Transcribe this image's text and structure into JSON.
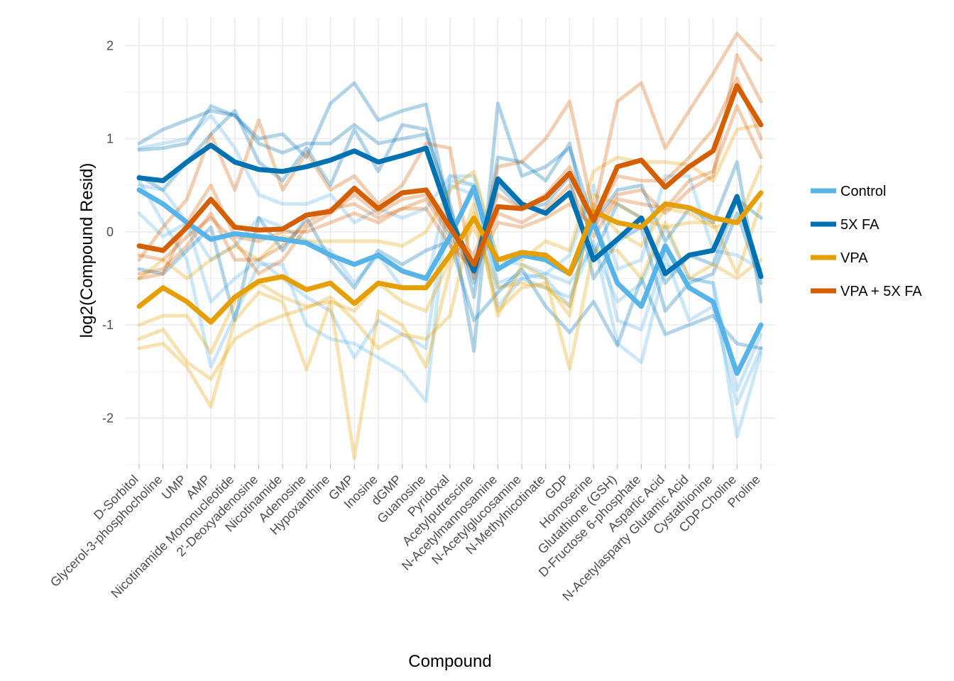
{
  "chart_data": {
    "type": "line",
    "xlabel": "Compound",
    "ylabel": "log2(Compound Resid)",
    "ylim": [
      -2.5,
      2.3
    ],
    "yticks": [
      2,
      1,
      0,
      -1,
      -2
    ],
    "grid": true,
    "legend_position": "right",
    "categories": [
      "D-Sorbitol",
      "Glycerol-3-phosphocholine",
      "UMP",
      "AMP",
      "Nicotinamide Mononucleotide",
      "2'-Deoxyadenosine",
      "Nicotinamide",
      "Adenosine",
      "Hypoxanthine",
      "GMP",
      "Inosine",
      "dGMP",
      "Guanosine",
      "Pyridoxal",
      "Acetylputrescine",
      "N-Acetylmannosamine",
      "N-Acetylglucosamine",
      "N-Methylnicotinate",
      "GDP",
      "Homoserine",
      "Glutathione (GSH)",
      "D-Fructose 6-phosphate",
      "Aspartic Acid",
      "N-Acetylasparty Glutamic Acid",
      "Cystathionine",
      "CDP-Choline",
      "Proline"
    ],
    "legend": [
      {
        "name": "Control",
        "color": "#56B4E9"
      },
      {
        "name": "5X FA",
        "color": "#0072B2"
      },
      {
        "name": "VPA",
        "color": "#E69F00"
      },
      {
        "name": "VPA + 5X FA",
        "color": "#D55E00"
      }
    ],
    "series": [
      {
        "name": "Control",
        "color": "#56B4E9",
        "values": [
          0.45,
          0.3,
          0.1,
          -0.08,
          -0.02,
          -0.05,
          -0.08,
          -0.12,
          -0.25,
          -0.35,
          -0.25,
          -0.42,
          -0.5,
          -0.05,
          0.48,
          -0.4,
          -0.25,
          -0.3,
          -0.45,
          0.1,
          -0.55,
          -0.8,
          -0.15,
          -0.6,
          -0.75,
          -1.52,
          -1.0
        ]
      },
      {
        "name": "5X FA",
        "color": "#0072B2",
        "values": [
          0.58,
          0.55,
          0.75,
          0.93,
          0.75,
          0.67,
          0.65,
          0.7,
          0.77,
          0.87,
          0.75,
          0.82,
          0.9,
          0.15,
          -0.42,
          0.57,
          0.3,
          0.2,
          0.42,
          -0.3,
          -0.08,
          0.15,
          -0.45,
          -0.25,
          -0.2,
          0.38,
          -0.48
        ]
      },
      {
        "name": "VPA",
        "color": "#E69F00",
        "values": [
          -0.8,
          -0.6,
          -0.75,
          -0.97,
          -0.7,
          -0.53,
          -0.48,
          -0.62,
          -0.55,
          -0.77,
          -0.55,
          -0.6,
          -0.6,
          -0.25,
          0.15,
          -0.3,
          -0.22,
          -0.25,
          -0.45,
          0.22,
          0.1,
          0.05,
          0.3,
          0.26,
          0.15,
          0.1,
          0.42
        ]
      },
      {
        "name": "VPA + 5X FA",
        "color": "#D55E00",
        "values": [
          -0.15,
          -0.2,
          0.05,
          0.35,
          0.05,
          0.02,
          0.03,
          0.18,
          0.22,
          0.47,
          0.25,
          0.42,
          0.45,
          0.05,
          -0.35,
          0.27,
          0.25,
          0.37,
          0.63,
          0.12,
          0.7,
          0.77,
          0.48,
          0.7,
          0.87,
          1.57,
          1.15
        ]
      }
    ],
    "replicates": [
      {
        "group": "Control",
        "values": [
          0.9,
          0.95,
          1.0,
          1.25,
          0.9,
          0.4,
          0.3,
          0.3,
          0.4,
          0.1,
          0.25,
          0.15,
          0.25,
          0.6,
          0.6,
          -0.3,
          -0.35,
          -0.45,
          -0.25,
          0.5,
          -0.4,
          -0.3,
          0.6,
          0.6,
          -0.2,
          -0.25,
          -0.4
        ]
      },
      {
        "group": "Control",
        "values": [
          0.2,
          -0.05,
          0.1,
          -0.3,
          -0.15,
          0.15,
          0.05,
          -0.1,
          -0.2,
          -0.55,
          -0.25,
          -0.6,
          -0.6,
          0.6,
          0.5,
          -0.6,
          -0.5,
          -0.45,
          -0.55,
          -0.15,
          -0.75,
          -0.55,
          0.05,
          -0.5,
          -0.55,
          -1.7,
          -1.1
        ]
      },
      {
        "group": "Control",
        "values": [
          0.5,
          0.45,
          0.1,
          -0.75,
          -0.5,
          -0.3,
          -0.5,
          -0.7,
          -0.85,
          -1.35,
          -0.95,
          -1.1,
          -1.25,
          0.55,
          0.5,
          -0.55,
          -0.45,
          -0.5,
          -0.8,
          0.25,
          -0.95,
          -1.05,
          -0.25,
          -0.95,
          -0.8,
          -1.85,
          -1.25
        ]
      },
      {
        "group": "Control",
        "values": [
          0.55,
          0.1,
          -0.3,
          -1.45,
          -0.9,
          -0.35,
          -0.35,
          -1.0,
          -1.15,
          -1.2,
          -1.35,
          -1.5,
          -1.82,
          0.5,
          0.4,
          -0.8,
          -0.5,
          -0.6,
          -0.7,
          -0.1,
          -1.2,
          -1.4,
          -0.35,
          -0.5,
          -0.55,
          -2.2,
          -1.3
        ]
      },
      {
        "group": "5X FA",
        "values": [
          0.88,
          0.9,
          0.95,
          1.35,
          1.25,
          1.0,
          1.05,
          0.8,
          1.38,
          1.6,
          1.2,
          1.3,
          1.37,
          0.2,
          -1.28,
          1.38,
          0.6,
          0.7,
          0.9,
          0.1,
          0.45,
          0.5,
          -0.1,
          0.25,
          0.1,
          0.75,
          -0.75
        ]
      },
      {
        "group": "5X FA",
        "values": [
          0.95,
          1.1,
          1.2,
          1.3,
          1.25,
          0.95,
          0.85,
          0.95,
          0.95,
          1.15,
          0.95,
          1.0,
          1.05,
          0.3,
          -0.7,
          0.8,
          0.75,
          0.55,
          0.95,
          -0.25,
          0.3,
          0.15,
          -0.55,
          -0.25,
          -0.35,
          0.35,
          0.15
        ]
      },
      {
        "group": "5X FA",
        "values": [
          0.6,
          0.45,
          0.75,
          1.05,
          1.3,
          0.75,
          0.55,
          0.9,
          0.5,
          1.1,
          0.65,
          1.15,
          1.1,
          0.25,
          -0.55,
          0.5,
          0.25,
          0.3,
          0.6,
          -0.5,
          -0.1,
          0.05,
          -0.85,
          -0.55,
          -0.45,
          0.2,
          -0.55
        ]
      },
      {
        "group": "5X FA",
        "values": [
          -0.4,
          -0.45,
          -0.2,
          0.05,
          -0.95,
          0.15,
          -0.2,
          0.15,
          -0.3,
          -0.6,
          -0.2,
          -0.35,
          -0.2,
          -0.1,
          -0.95,
          -0.65,
          -0.4,
          -0.8,
          -1.08,
          -0.75,
          -1.22,
          -0.5,
          -1.1,
          -1.0,
          -0.9,
          -1.2,
          -1.25
        ]
      },
      {
        "group": "VPA",
        "values": [
          -0.5,
          -0.3,
          -0.5,
          -0.3,
          -0.15,
          -0.3,
          -0.05,
          -0.1,
          -0.1,
          -0.1,
          -0.1,
          -0.15,
          0.0,
          0.45,
          0.65,
          -0.3,
          -0.3,
          -0.1,
          -0.2,
          0.65,
          0.8,
          0.75,
          0.75,
          0.72,
          0.55,
          1.1,
          1.15
        ]
      },
      {
        "group": "VPA",
        "values": [
          -1.0,
          -0.9,
          -0.9,
          -1.3,
          -0.75,
          -0.55,
          -0.7,
          -0.8,
          -0.75,
          -0.85,
          -0.55,
          -0.75,
          -0.85,
          -0.3,
          0.05,
          -0.6,
          -0.55,
          -0.6,
          -0.8,
          0.3,
          0.0,
          -0.15,
          0.25,
          0.2,
          0.05,
          0.1,
          0.7
        ]
      },
      {
        "group": "VPA",
        "values": [
          -1.25,
          -1.2,
          -1.45,
          -1.88,
          -0.95,
          -0.65,
          -0.75,
          -1.48,
          -0.75,
          -2.43,
          -0.85,
          -1.0,
          -1.45,
          -0.4,
          0.3,
          -0.9,
          -0.35,
          -0.5,
          -1.47,
          -0.2,
          -0.2,
          -0.5,
          0.1,
          -0.5,
          -0.35,
          -0.5,
          -0.3
        ]
      },
      {
        "group": "VPA",
        "values": [
          -1.15,
          -1.05,
          -1.4,
          -1.58,
          -1.15,
          -1.0,
          -0.9,
          -0.82,
          -0.7,
          -0.95,
          -1.25,
          -1.1,
          -1.15,
          -0.9,
          0.2,
          -0.85,
          -0.6,
          -0.55,
          -0.9,
          0.4,
          0.3,
          0.15,
          0.05,
          0.1,
          0.1,
          -0.45,
          0.3
        ]
      },
      {
        "group": "VPA + 5X FA",
        "values": [
          -0.3,
          0.05,
          0.35,
          1.05,
          0.45,
          1.2,
          0.45,
          0.85,
          0.45,
          0.6,
          0.3,
          0.5,
          0.95,
          0.9,
          -0.5,
          0.7,
          0.75,
          1.0,
          1.4,
          0.2,
          1.4,
          1.6,
          0.9,
          1.3,
          1.7,
          2.13,
          1.85
        ]
      },
      {
        "group": "VPA + 5X FA",
        "values": [
          -0.45,
          -0.4,
          -0.15,
          0.2,
          -0.3,
          -0.3,
          -0.15,
          0.1,
          0.25,
          0.3,
          0.15,
          0.25,
          0.35,
          -0.05,
          -0.45,
          0.1,
          0.05,
          0.15,
          0.3,
          0.05,
          0.4,
          0.45,
          0.2,
          0.45,
          0.6,
          1.9,
          1.4
        ]
      },
      {
        "group": "VPA + 5X FA",
        "values": [
          -0.5,
          -0.45,
          0.1,
          0.5,
          -0.05,
          -0.1,
          0.0,
          0.0,
          0.1,
          0.2,
          0.1,
          0.25,
          0.25,
          -0.15,
          -0.4,
          0.2,
          0.1,
          0.25,
          0.5,
          -0.05,
          0.35,
          0.3,
          0.25,
          0.55,
          0.65,
          1.35,
          0.8
        ]
      },
      {
        "group": "VPA + 5X FA",
        "values": [
          -0.25,
          -0.3,
          -0.05,
          0.15,
          -0.1,
          -0.45,
          -0.3,
          0.05,
          0.2,
          0.4,
          0.2,
          0.35,
          0.4,
          0.0,
          -0.25,
          0.4,
          0.25,
          0.4,
          0.7,
          0.1,
          0.6,
          0.55,
          0.55,
          0.8,
          1.1,
          1.65,
          1.0
        ]
      }
    ]
  }
}
